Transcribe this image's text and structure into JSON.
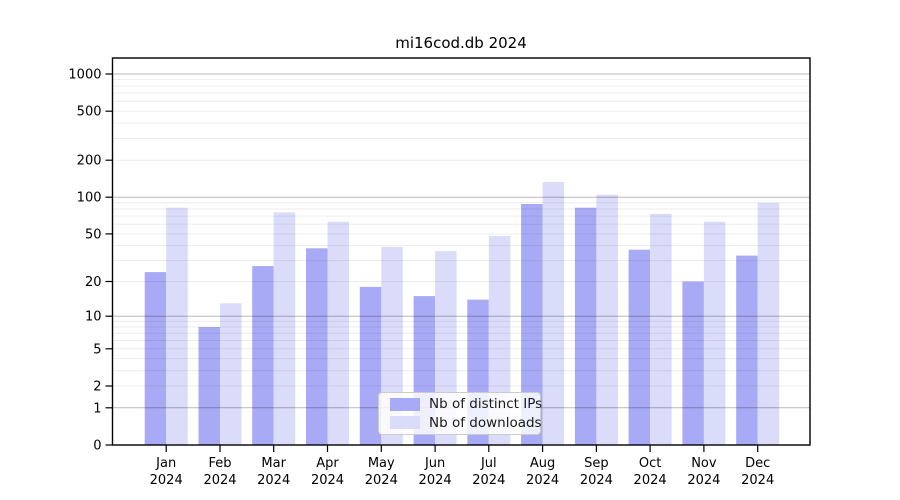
{
  "chart_data": {
    "type": "bar",
    "title": "mi16cod.db 2024",
    "categories": [
      "Jan",
      "Feb",
      "Mar",
      "Apr",
      "May",
      "Jun",
      "Jul",
      "Aug",
      "Sep",
      "Oct",
      "Nov",
      "Dec"
    ],
    "x_year_label": "2024",
    "series": [
      {
        "name": "Nb of distinct IPs",
        "color": "#a8aaf6",
        "values": [
          24,
          8,
          27,
          38,
          18,
          15,
          14,
          88,
          82,
          37,
          20,
          33
        ]
      },
      {
        "name": "Nb of downloads",
        "color": "#dadcfa",
        "values": [
          82,
          13,
          75,
          63,
          39,
          36,
          48,
          133,
          105,
          73,
          63,
          90
        ]
      }
    ],
    "yscale": "log1p",
    "y_ticks": [
      0,
      1,
      2,
      5,
      10,
      20,
      50,
      100,
      200,
      500,
      1000
    ],
    "ylim": [
      0,
      1350
    ],
    "grid": true,
    "legend_position": "lower center",
    "axis_color": "#000000",
    "major_grid_color": "#b8b8b8",
    "minor_grid_color": "#ececec"
  }
}
